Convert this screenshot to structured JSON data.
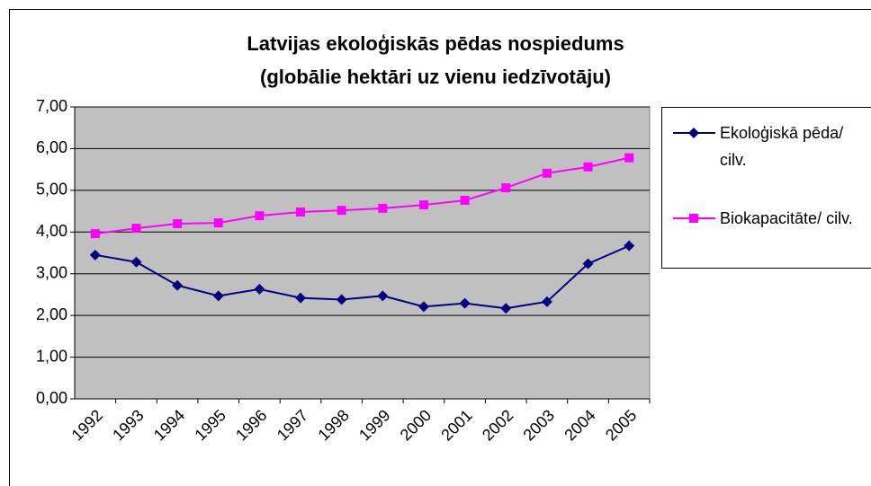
{
  "chart_data": {
    "type": "line",
    "title": "Latvijas ekoloģiskās pēdas nospiedums",
    "subtitle": "(globālie hektāri uz vienu iedzīvotāju)",
    "categories": [
      "1992",
      "1993",
      "1994",
      "1995",
      "1996",
      "1997",
      "1998",
      "1999",
      "2000",
      "2001",
      "2002",
      "2003",
      "2004",
      "2005"
    ],
    "series": [
      {
        "name": "Ekoloģiskā pēda/ cilv.",
        "color": "#000080",
        "marker": "diamond",
        "values": [
          3.45,
          3.28,
          2.72,
          2.47,
          2.63,
          2.42,
          2.38,
          2.47,
          2.21,
          2.29,
          2.17,
          2.33,
          3.24,
          3.67
        ]
      },
      {
        "name": "Biokapacitāte/ cilv.",
        "color": "#ff00ff",
        "marker": "square",
        "values": [
          3.96,
          4.09,
          4.2,
          4.22,
          4.39,
          4.48,
          4.52,
          4.57,
          4.65,
          4.76,
          5.06,
          5.41,
          5.56,
          5.78
        ]
      }
    ],
    "ylim": [
      0,
      7
    ],
    "yticks": [
      {
        "value": 0,
        "label": "0,00"
      },
      {
        "value": 1,
        "label": "1,00"
      },
      {
        "value": 2,
        "label": "2,00"
      },
      {
        "value": 3,
        "label": "3,00"
      },
      {
        "value": 4,
        "label": "4,00"
      },
      {
        "value": 5,
        "label": "5,00"
      },
      {
        "value": 6,
        "label": "6,00"
      },
      {
        "value": 7,
        "label": "7,00"
      }
    ],
    "grid": true,
    "legend": "right",
    "background": "#c0c0c0"
  }
}
